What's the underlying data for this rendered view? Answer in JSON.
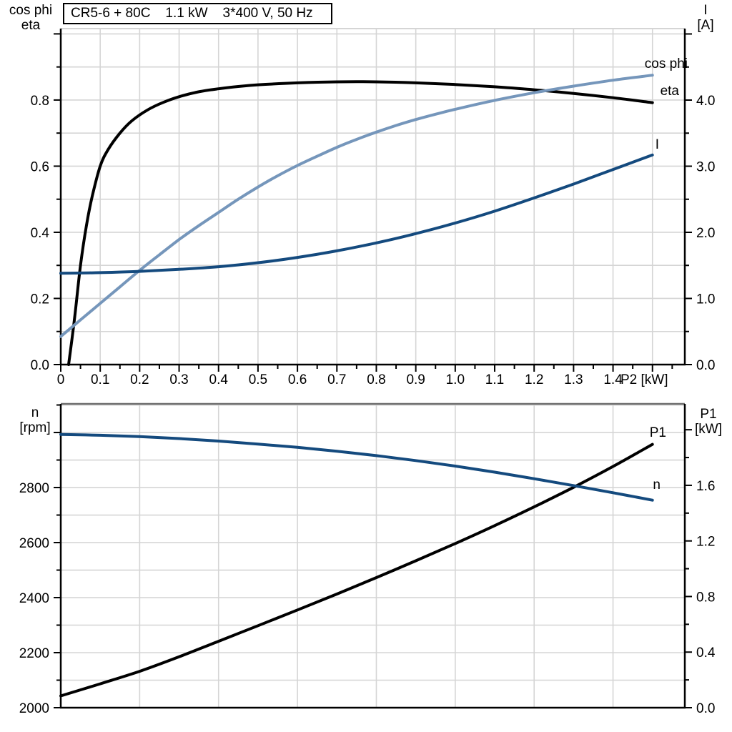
{
  "header": {
    "model": "CR5-6 + 80C",
    "power": "1.1 kW",
    "supply": "3*400 V, 50 Hz"
  },
  "colors": {
    "black": "#000000",
    "light_blue": "#7596bb",
    "dark_blue": "#144a7e",
    "grid": "#d5d5d5",
    "frame_gray": "#6e6e6e",
    "background": "#ffffff"
  },
  "chart_data": [
    {
      "id": "motor-top-chart",
      "type": "line",
      "x_axis": {
        "unit_label": "P2 [kW]",
        "range": [
          0,
          1.582
        ],
        "grid_step": 0.1,
        "minor_step": 0.05,
        "ticks": [
          {
            "v": 0,
            "label": "0"
          },
          {
            "v": 0.1,
            "label": "0.1"
          },
          {
            "v": 0.2,
            "label": "0.2"
          },
          {
            "v": 0.3,
            "label": "0.3"
          },
          {
            "v": 0.4,
            "label": "0.4"
          },
          {
            "v": 0.5,
            "label": "0.5"
          },
          {
            "v": 0.6,
            "label": "0.6"
          },
          {
            "v": 0.7,
            "label": "0.7"
          },
          {
            "v": 0.8,
            "label": "0.8"
          },
          {
            "v": 0.9,
            "label": "0.9"
          },
          {
            "v": 1.0,
            "label": "1.0"
          },
          {
            "v": 1.1,
            "label": "1.1"
          },
          {
            "v": 1.2,
            "label": "1.2"
          },
          {
            "v": 1.3,
            "label": "1.3"
          },
          {
            "v": 1.4,
            "label": "1.4"
          },
          {
            "v": 1.5,
            "label": ""
          }
        ]
      },
      "left_axis": {
        "title_lines": [
          "cos phi",
          "eta"
        ],
        "range": [
          0,
          1.016
        ],
        "grid_step": 0.1,
        "minor_step": 0.1,
        "ticks": [
          {
            "v": 0,
            "label": "0.0"
          },
          {
            "v": 0.2,
            "label": "0.2"
          },
          {
            "v": 0.4,
            "label": "0.4"
          },
          {
            "v": 0.6,
            "label": "0.6"
          },
          {
            "v": 0.8,
            "label": "0.8"
          },
          {
            "v": 1.0,
            "label": ""
          }
        ]
      },
      "right_axis": {
        "title_lines": [
          "I",
          "[A]"
        ],
        "range": [
          0,
          5.081
        ],
        "minor_step": 0.5,
        "ticks": [
          {
            "v": 0,
            "label": "0.0"
          },
          {
            "v": 1,
            "label": "1.0"
          },
          {
            "v": 2,
            "label": "2.0"
          },
          {
            "v": 3,
            "label": "3.0"
          },
          {
            "v": 4,
            "label": "4.0"
          },
          {
            "v": 5,
            "label": ""
          }
        ]
      },
      "series": [
        {
          "id": "eta",
          "name": "eta",
          "axis": "left",
          "color_key": "black",
          "points": [
            [
              0.02,
              0
            ],
            [
              0.035,
              0.14
            ],
            [
              0.05,
              0.3
            ],
            [
              0.065,
              0.42
            ],
            [
              0.08,
              0.51
            ],
            [
              0.1,
              0.6
            ],
            [
              0.12,
              0.65
            ],
            [
              0.15,
              0.7
            ],
            [
              0.18,
              0.737
            ],
            [
              0.22,
              0.77
            ],
            [
              0.26,
              0.793
            ],
            [
              0.3,
              0.81
            ],
            [
              0.35,
              0.825
            ],
            [
              0.4,
              0.834
            ],
            [
              0.45,
              0.841
            ],
            [
              0.5,
              0.846
            ],
            [
              0.6,
              0.852
            ],
            [
              0.7,
              0.855
            ],
            [
              0.8,
              0.855
            ],
            [
              0.9,
              0.852
            ],
            [
              1.0,
              0.847
            ],
            [
              1.1,
              0.84
            ],
            [
              1.2,
              0.831
            ],
            [
              1.3,
              0.82
            ],
            [
              1.4,
              0.807
            ],
            [
              1.5,
              0.792
            ]
          ]
        },
        {
          "id": "cos-phi",
          "name": "cos phi",
          "axis": "left",
          "color_key": "light_blue",
          "points": [
            [
              0,
              0.085
            ],
            [
              0.05,
              0.135
            ],
            [
              0.1,
              0.185
            ],
            [
              0.15,
              0.235
            ],
            [
              0.2,
              0.285
            ],
            [
              0.25,
              0.332
            ],
            [
              0.3,
              0.378
            ],
            [
              0.35,
              0.42
            ],
            [
              0.4,
              0.46
            ],
            [
              0.45,
              0.5
            ],
            [
              0.5,
              0.537
            ],
            [
              0.55,
              0.571
            ],
            [
              0.6,
              0.602
            ],
            [
              0.65,
              0.63
            ],
            [
              0.7,
              0.657
            ],
            [
              0.75,
              0.681
            ],
            [
              0.8,
              0.703
            ],
            [
              0.85,
              0.723
            ],
            [
              0.9,
              0.741
            ],
            [
              0.95,
              0.757
            ],
            [
              1.0,
              0.772
            ],
            [
              1.1,
              0.799
            ],
            [
              1.2,
              0.822
            ],
            [
              1.3,
              0.842
            ],
            [
              1.4,
              0.86
            ],
            [
              1.5,
              0.875
            ]
          ]
        },
        {
          "id": "current",
          "name": "I",
          "axis": "right",
          "color_key": "dark_blue",
          "points": [
            [
              0,
              1.38
            ],
            [
              0.1,
              1.39
            ],
            [
              0.2,
              1.41
            ],
            [
              0.3,
              1.44
            ],
            [
              0.4,
              1.48
            ],
            [
              0.5,
              1.54
            ],
            [
              0.6,
              1.62
            ],
            [
              0.7,
              1.72
            ],
            [
              0.8,
              1.84
            ],
            [
              0.9,
              1.98
            ],
            [
              1.0,
              2.14
            ],
            [
              1.1,
              2.32
            ],
            [
              1.2,
              2.52
            ],
            [
              1.3,
              2.73
            ],
            [
              1.4,
              2.95
            ],
            [
              1.5,
              3.17
            ]
          ]
        }
      ]
    },
    {
      "id": "motor-bottom-chart",
      "type": "line",
      "x_axis": {
        "range": [
          0,
          1.582
        ],
        "grid_step": 0.2
      },
      "left_axis": {
        "title_lines": [
          "n",
          "[rpm]"
        ],
        "range": [
          2000,
          3104
        ],
        "grid_step": 100,
        "minor_step": 100,
        "ticks": [
          {
            "v": 2000,
            "label": "2000"
          },
          {
            "v": 2200,
            "label": "2200"
          },
          {
            "v": 2400,
            "label": "2400"
          },
          {
            "v": 2600,
            "label": "2600"
          },
          {
            "v": 2800,
            "label": "2800"
          },
          {
            "v": 3000,
            "label": ""
          }
        ]
      },
      "right_axis": {
        "title_lines": [
          "P1",
          "[kW]"
        ],
        "range": [
          0,
          2.186
        ],
        "minor_step": 0.2,
        "ticks": [
          {
            "v": 0,
            "label": "0.0"
          },
          {
            "v": 0.4,
            "label": "0.4"
          },
          {
            "v": 0.8,
            "label": "0.8"
          },
          {
            "v": 1.2,
            "label": "1.2"
          },
          {
            "v": 1.6,
            "label": "1.6"
          },
          {
            "v": 2.0,
            "label": ""
          }
        ]
      },
      "series": [
        {
          "id": "p1",
          "name": "P1",
          "axis": "right",
          "color_key": "black",
          "points": [
            [
              0,
              0.085
            ],
            [
              0.1,
              0.172
            ],
            [
              0.2,
              0.262
            ],
            [
              0.3,
              0.366
            ],
            [
              0.4,
              0.478
            ],
            [
              0.5,
              0.59
            ],
            [
              0.6,
              0.703
            ],
            [
              0.7,
              0.818
            ],
            [
              0.8,
              0.936
            ],
            [
              0.9,
              1.057
            ],
            [
              1.0,
              1.181
            ],
            [
              1.1,
              1.31
            ],
            [
              1.2,
              1.445
            ],
            [
              1.3,
              1.586
            ],
            [
              1.4,
              1.736
            ],
            [
              1.5,
              1.895
            ]
          ]
        },
        {
          "id": "speed",
          "name": "n",
          "axis": "left",
          "color_key": "dark_blue",
          "points": [
            [
              0,
              2993
            ],
            [
              0.1,
              2990
            ],
            [
              0.2,
              2985
            ],
            [
              0.3,
              2978
            ],
            [
              0.4,
              2969
            ],
            [
              0.5,
              2958
            ],
            [
              0.6,
              2946
            ],
            [
              0.7,
              2932
            ],
            [
              0.8,
              2916
            ],
            [
              0.9,
              2898
            ],
            [
              1.0,
              2878
            ],
            [
              1.1,
              2856
            ],
            [
              1.2,
              2832
            ],
            [
              1.3,
              2807
            ],
            [
              1.4,
              2781
            ],
            [
              1.5,
              2754
            ]
          ]
        }
      ]
    }
  ]
}
